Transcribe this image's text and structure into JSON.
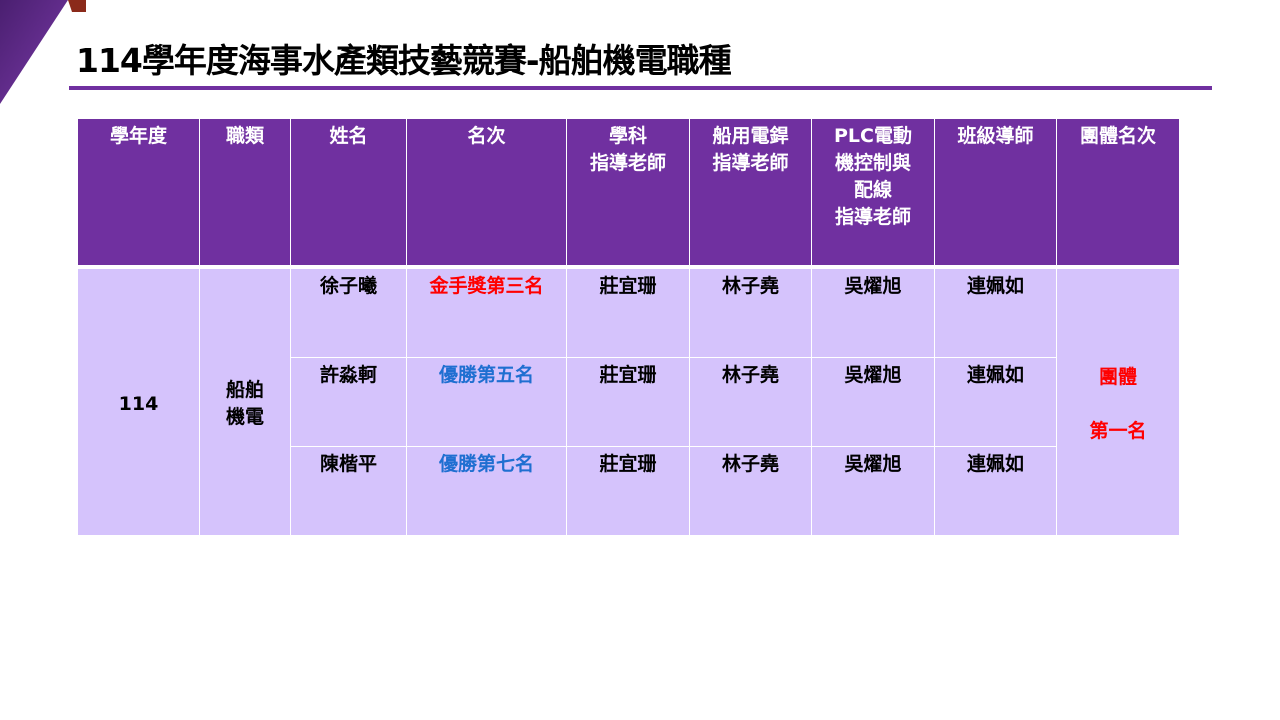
{
  "title": "114學年度海事水產類技藝競賽-船舶機電職種",
  "colors": {
    "accent": "#7030a0",
    "row_bg": "#d5c3fc",
    "gold": "#ff0000",
    "merit": "#1f6fd1"
  },
  "table": {
    "headers": [
      "學年度",
      "職類",
      "姓名",
      "名次",
      "學科\n指導老師",
      "船用電銲\n指導老師",
      "PLC電動\n機控制與\n配線\n指導老師",
      "班級導師",
      "團體名次"
    ],
    "year": "114",
    "category": "船舶\n機電",
    "rows": [
      {
        "name": "徐子曦",
        "rank": "金手獎第三名",
        "rank_color": "red",
        "t1": "莊宜珊",
        "t2": "林子堯",
        "t3": "吳燿旭",
        "homeroom": "連姵如"
      },
      {
        "name": "許淼軻",
        "rank": "優勝第五名",
        "rank_color": "blue",
        "t1": "莊宜珊",
        "t2": "林子堯",
        "t3": "吳燿旭",
        "homeroom": "連姵如"
      },
      {
        "name": "陳楷平",
        "rank": "優勝第七名",
        "rank_color": "blue",
        "t1": "莊宜珊",
        "t2": "林子堯",
        "t3": "吳燿旭",
        "homeroom": "連姵如"
      }
    ],
    "team_rank": "團體\n\n第一名"
  }
}
